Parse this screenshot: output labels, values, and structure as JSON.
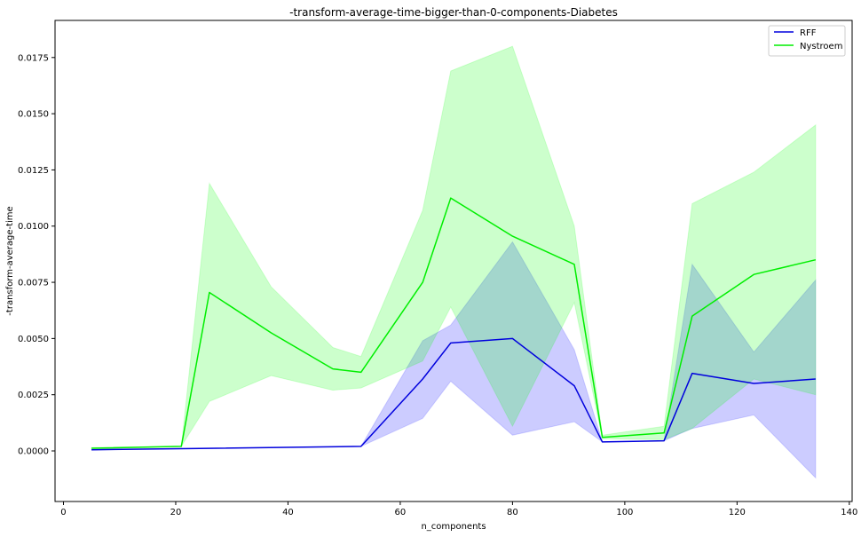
{
  "chart_data": {
    "type": "line",
    "title": "-transform-average-time-bigger-than-0-components-Diabetes",
    "xlabel": "n_components",
    "ylabel": "-transform-average-time",
    "xlim": [
      -1.5,
      140.5
    ],
    "ylim": [
      -0.00225,
      0.01915
    ],
    "xticks": [
      0,
      20,
      40,
      60,
      80,
      100,
      120,
      140
    ],
    "xtick_labels": [
      "0",
      "20",
      "40",
      "60",
      "80",
      "100",
      "120",
      "140"
    ],
    "yticks": [
      0.0,
      0.0025,
      0.005,
      0.0075,
      0.01,
      0.0125,
      0.015,
      0.0175
    ],
    "ytick_labels": [
      "0.0000",
      "0.0025",
      "0.0050",
      "0.0075",
      "0.0100",
      "0.0125",
      "0.0150",
      "0.0175"
    ],
    "grid": false,
    "legend_position": "top-right",
    "series": [
      {
        "name": "RFF",
        "color": "#0000dd",
        "band_color": "#0000ff",
        "band_opacity": 0.2,
        "x": [
          5,
          21,
          53,
          64,
          69,
          80,
          91,
          96,
          107,
          112,
          123,
          134
        ],
        "y": [
          5e-05,
          0.0001,
          0.0002,
          0.0032,
          0.0048,
          0.005,
          0.0029,
          0.0004,
          0.00045,
          0.00345,
          0.003,
          0.0032
        ],
        "lower": [
          5e-05,
          0.0001,
          0.0002,
          0.00145,
          0.0031,
          0.0007,
          0.0013,
          0.0004,
          0.00045,
          0.001,
          0.0016,
          -0.0012
        ],
        "upper": [
          5e-05,
          0.0001,
          0.0002,
          0.0049,
          0.0056,
          0.0093,
          0.0045,
          0.0004,
          0.00045,
          0.0083,
          0.0044,
          0.0076
        ]
      },
      {
        "name": "Nystroem",
        "color": "#00ee00",
        "band_color": "#00ff00",
        "band_opacity": 0.2,
        "x": [
          5,
          21,
          26,
          37,
          48,
          53,
          64,
          69,
          80,
          91,
          96,
          107,
          112,
          123,
          134
        ],
        "y": [
          0.00012,
          0.0002,
          0.00705,
          0.00525,
          0.00365,
          0.0035,
          0.0075,
          0.01125,
          0.00955,
          0.0083,
          0.0006,
          0.0008,
          0.006,
          0.00785,
          0.0085
        ],
        "lower": [
          0.0001,
          0.0002,
          0.0022,
          0.00335,
          0.0027,
          0.0028,
          0.004,
          0.0064,
          0.0011,
          0.0066,
          0.00055,
          0.0005,
          0.001,
          0.0032,
          0.0025
        ],
        "upper": [
          0.00015,
          0.0002,
          0.0119,
          0.0073,
          0.0046,
          0.0042,
          0.0107,
          0.0169,
          0.018,
          0.01,
          0.0007,
          0.0011,
          0.011,
          0.0124,
          0.0145
        ]
      }
    ]
  }
}
